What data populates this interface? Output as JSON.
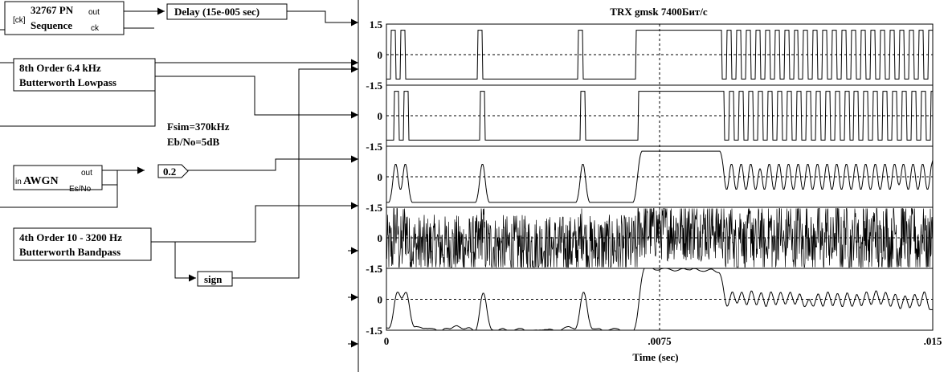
{
  "blocks": {
    "pn": {
      "line1": "32767 PN",
      "line2": "Sequence",
      "port_ck_in": "[ck]",
      "port_out": "out",
      "port_ck": "ck"
    },
    "delay": {
      "label": "Delay (15e-005 sec)"
    },
    "lowpass": {
      "line1": "8th Order 6.4 kHz",
      "line2": "Butterworth Lowpass"
    },
    "awgn": {
      "label": "AWGN",
      "port_in": "in",
      "port_out": "out",
      "port_esno": "Es/No"
    },
    "gain": {
      "label": "0.2"
    },
    "bandpass": {
      "line1": "4th Order 10 - 3200 Hz",
      "line2": "Butterworth Bandpass"
    },
    "sign": {
      "label": "sign"
    }
  },
  "notes": {
    "fsim": "Fsim=370kHz",
    "ebno": "Eb/No=5dB"
  },
  "chart_data": {
    "type": "line",
    "title": "TRX gmsk 7400Бит/с",
    "xlabel": "Time (sec)",
    "x_ticks": [
      "0",
      ".0075",
      ".015"
    ],
    "xlim": [
      0,
      0.015
    ],
    "grid": "dashed midlines",
    "panels": [
      {
        "name": "",
        "ylim": [
          -1.5,
          1.5
        ],
        "y_ticks": [
          "1.5",
          "0",
          "-1.5"
        ],
        "kind": "square",
        "bits": [
          0,
          1,
          0,
          1,
          0,
          0,
          0,
          0,
          0,
          0,
          0,
          0,
          0,
          0,
          0,
          0,
          0,
          0,
          0,
          1,
          0,
          0,
          0,
          0,
          0,
          0,
          0,
          0,
          0,
          0,
          0,
          0,
          0,
          0,
          0,
          0,
          0,
          0,
          0,
          0,
          1,
          0,
          0,
          0,
          0,
          0,
          0,
          0,
          0,
          0,
          0,
          0,
          1,
          1,
          1,
          1,
          1,
          1,
          1,
          1,
          1,
          1,
          1,
          1,
          1,
          1,
          1,
          1,
          1,
          1,
          0,
          1,
          0,
          1,
          0,
          1,
          0,
          1,
          0,
          1,
          0,
          1,
          0,
          1,
          0,
          1,
          0,
          1,
          0,
          1,
          0,
          1,
          0,
          1,
          0,
          1,
          0,
          1,
          0,
          1,
          0,
          1,
          0,
          1,
          0,
          1,
          0,
          1,
          0,
          1,
          0,
          1,
          0,
          1
        ]
      },
      {
        "name": "",
        "ylim": [
          -1.5,
          1.5
        ],
        "y_ticks": [
          "0",
          "-1.5"
        ],
        "kind": "square_delayed"
      },
      {
        "name": "",
        "ylim": [
          -1.5,
          1.5
        ],
        "y_ticks": [
          "0",
          "-1.5"
        ],
        "kind": "filtered"
      },
      {
        "name": "",
        "ylim": [
          -1.5,
          1.5
        ],
        "y_ticks": [
          "0",
          "-1.5"
        ],
        "kind": "noisy"
      },
      {
        "name": "",
        "ylim": [
          -1.5,
          1.5
        ],
        "y_ticks": [
          "-1.5",
          "0",
          "-1.5"
        ],
        "kind": "bandpassed"
      }
    ]
  }
}
